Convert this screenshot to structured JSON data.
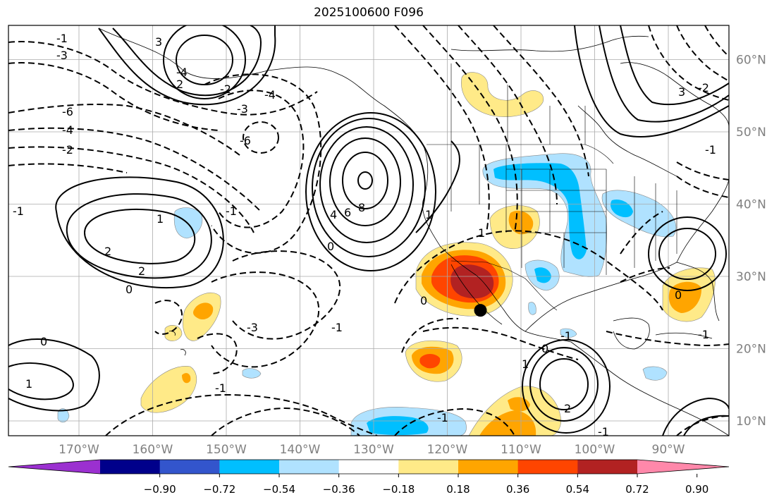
{
  "title": "2025100600 F096",
  "lon_labels": [
    "170°W",
    "160°W",
    "150°W",
    "140°W",
    "130°W",
    "120°W",
    "110°W",
    "100°W",
    "90°W"
  ],
  "lat_labels": [
    "60°N",
    "50°N",
    "40°N",
    "30°N",
    "20°N",
    "10°N"
  ],
  "colorbar": {
    "colors": [
      "#9b30d0",
      "#00008b",
      "#3355cc",
      "#00bfff",
      "#b0e2ff",
      "#ffffff",
      "#ffea88",
      "#ffa500",
      "#ff4500",
      "#b22222",
      "#ff88aa"
    ],
    "tick_labels": [
      "−0.90",
      "−0.72",
      "−0.54",
      "−0.36",
      "−0.18",
      "0.18",
      "0.36",
      "0.54",
      "0.72",
      "0.90"
    ]
  },
  "contour_labels": {
    "solid": [
      "8",
      "6",
      "4",
      "2",
      "2",
      "2",
      "1",
      "1",
      "1",
      "3",
      "3",
      "2",
      "1",
      "0",
      "0",
      "0",
      "0",
      "0",
      "0",
      "1"
    ],
    "dashed": [
      "-1",
      "-3",
      "-4",
      "-6",
      "-4",
      "-2",
      "-6",
      "-4",
      "-3",
      "-2",
      "-1",
      "-1",
      "-1",
      "-1",
      "-1",
      "-2",
      "-1",
      "-1",
      "-3",
      "-1",
      "-1"
    ]
  },
  "marker": {
    "label": "point-marker",
    "lon": -115.5,
    "lat": 25.3
  }
}
